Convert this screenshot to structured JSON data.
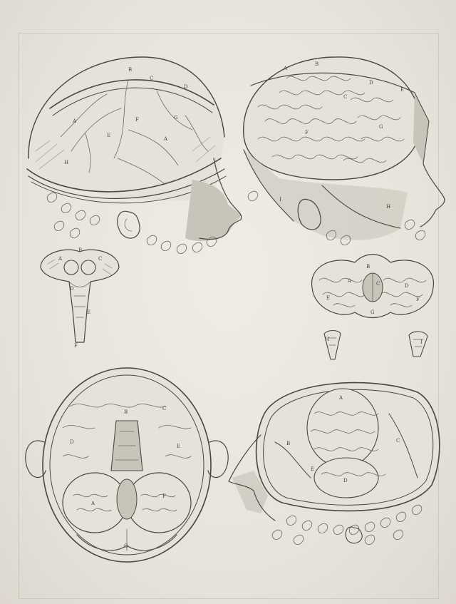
{
  "colors": {
    "paper": "#e9e5de",
    "ink": "#4a4640",
    "shade": "#c9c4ba"
  },
  "figures": [
    {
      "id": "fig-1",
      "subject": "head-left-profile-dura-mater"
    },
    {
      "id": "fig-2",
      "subject": "head-right-profile-exposed-brain"
    },
    {
      "id": "fig-3",
      "subject": "brainstem-detached"
    },
    {
      "id": "fig-4",
      "subject": "brain-underside-detached"
    },
    {
      "id": "fig-5",
      "subject": "pituitary-fragments"
    },
    {
      "id": "fig-6",
      "subject": "skull-opened-top-view"
    },
    {
      "id": "fig-7",
      "subject": "skull-opened-oblique-view"
    }
  ],
  "letters": {
    "fig1": [
      "A",
      "A",
      "B",
      "C",
      "D",
      "E",
      "F",
      "G",
      "H"
    ],
    "fig2": [
      "A",
      "B",
      "C",
      "D",
      "E",
      "F",
      "G",
      "H",
      "I"
    ],
    "fig3": [
      "A",
      "B",
      "C",
      "D",
      "E",
      "F"
    ],
    "fig4": [
      "A",
      "B",
      "C",
      "D",
      "E",
      "F",
      "G"
    ],
    "fig5": [
      "H",
      "I"
    ],
    "fig6": [
      "A",
      "B",
      "C",
      "D",
      "E",
      "F",
      "G"
    ],
    "fig7": [
      "A",
      "B",
      "C",
      "D",
      "E"
    ]
  }
}
